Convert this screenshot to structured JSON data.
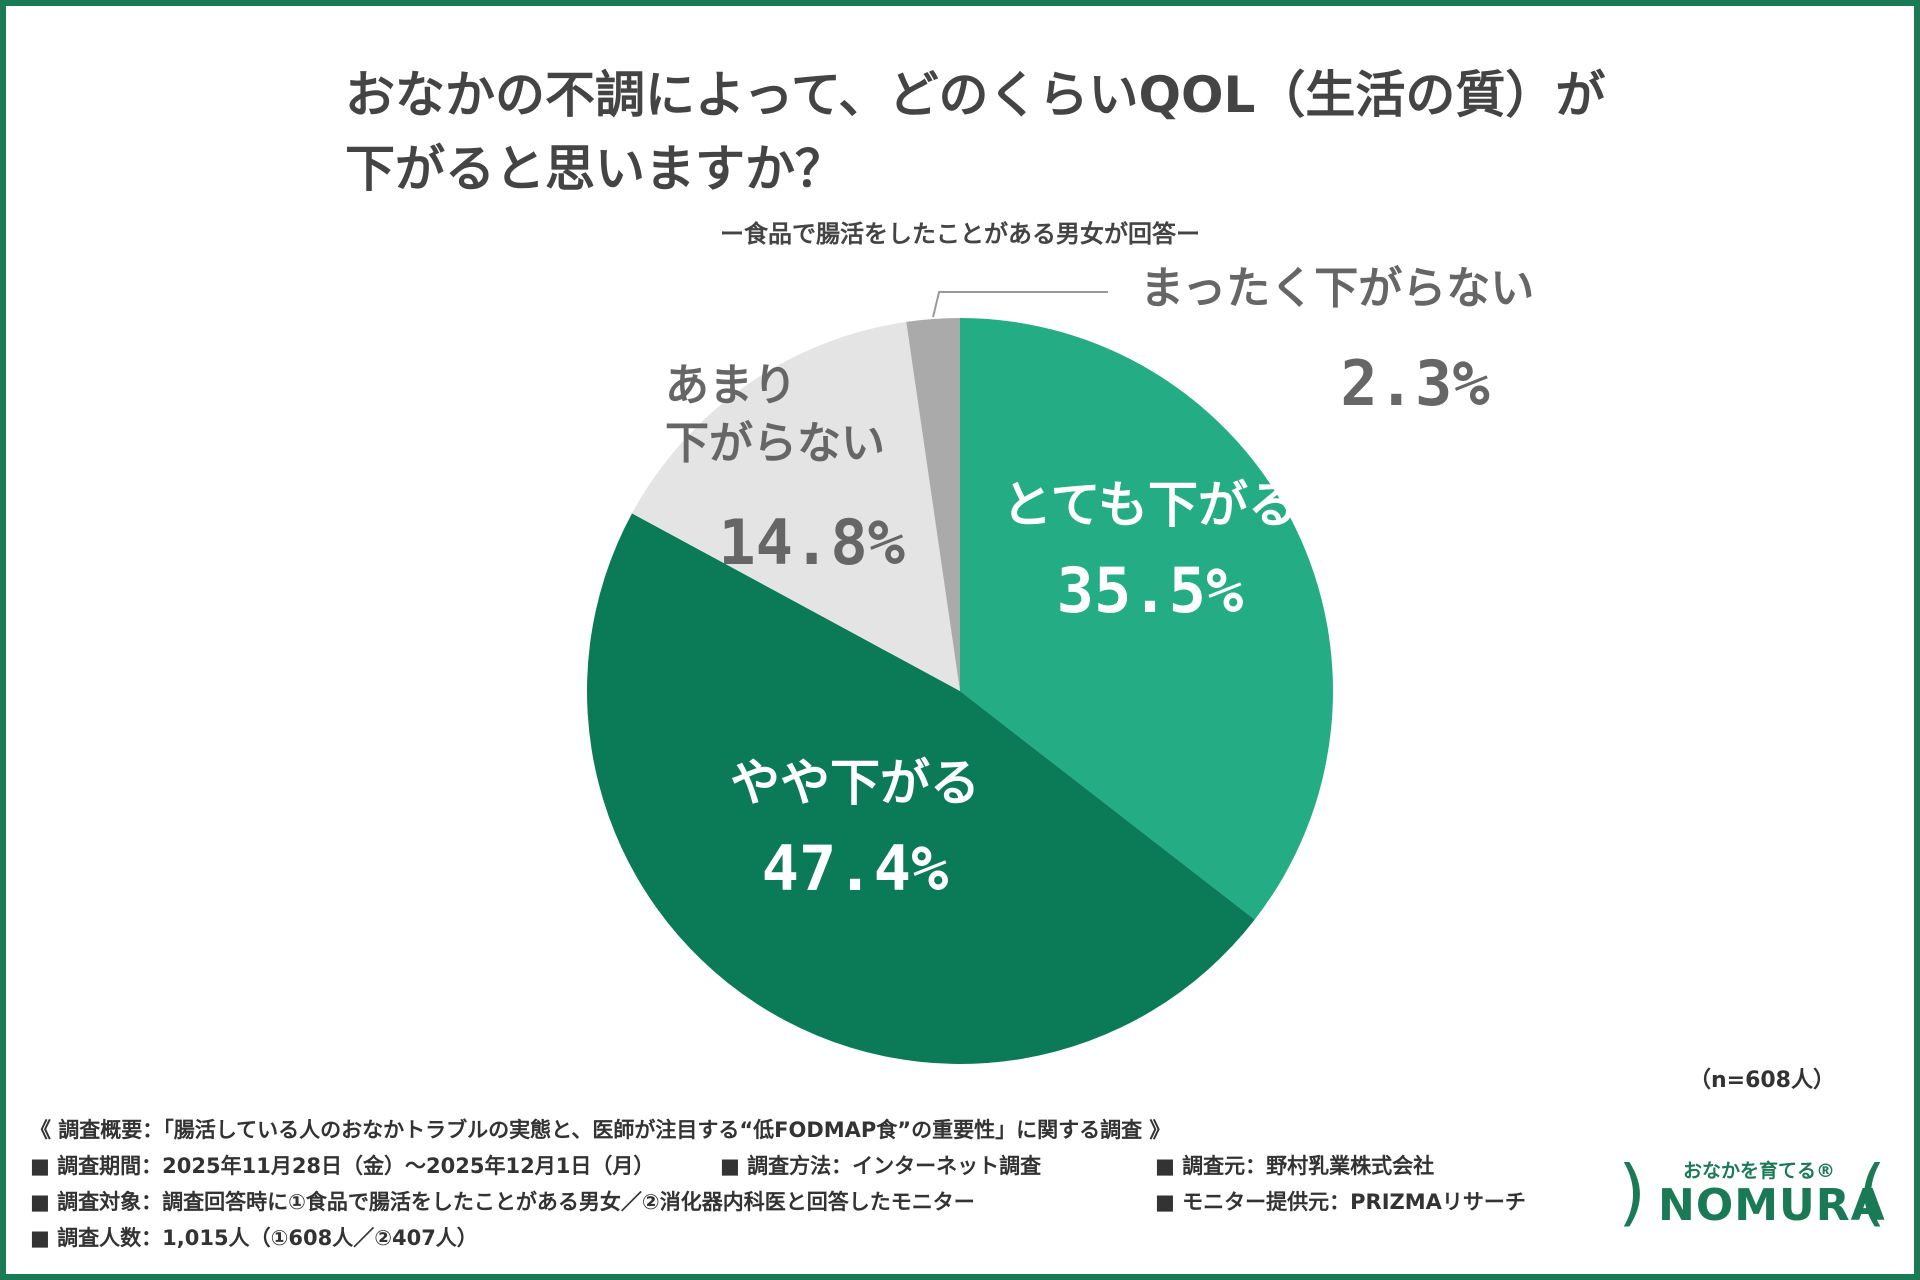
{
  "title_line1": "おなかの不調によって、どのくらいQOL（生活の質）が",
  "title_line2": "下がると思いますか？",
  "subtitle": "ー食品で腸活をしたことがある男女が回答ー",
  "chart_data": {
    "type": "pie",
    "title": "おなかの不調によって、どのくらいQOL（生活の質）が下がると思いますか？",
    "slices": [
      {
        "label": "とても下がる",
        "value": 35.5,
        "display": "35.5%",
        "color": "#24ad84",
        "label_color": "#ffffff"
      },
      {
        "label": "やや下がる",
        "value": 47.4,
        "display": "47.4%",
        "color": "#0b7b57",
        "label_color": "#ffffff"
      },
      {
        "label": "あまり\n下がらない",
        "value": 14.8,
        "display": "14.8%",
        "color": "#e4e4e4",
        "label_color": "#666666"
      },
      {
        "label": "まったく下がらない",
        "value": 2.3,
        "display": "2.3%",
        "color": "#aaaaaa",
        "label_color": "#666666"
      }
    ],
    "start_angle": "12 o'clock",
    "direction": "clockwise"
  },
  "sample_size": "（n=608人）",
  "notes": {
    "overview": "《 調査概要：「腸活している人のおなかトラブルの実態と、医師が注目する“低FODMAP食”の重要性」に関する調査 》",
    "period": "■ 調査期間：2025年11月28日（金）〜2025年12月1日（月）",
    "method": "■ 調査方法：インターネット調査",
    "source": "■ 調査元：野村乳業株式会社",
    "target": "■ 調査対象：調査回答時に①食品で腸活をしたことがある男女／②消化器内科医と回答したモニター",
    "provider": "■ モニター提供元：PRIZMAリサーチ",
    "count": "■ 調査人数：1,015人（①608人／②407人）"
  },
  "logo": {
    "tagline": "おなかを育てる®",
    "name": "NOMURA"
  },
  "colors": {
    "brand_green": "#1a7a55",
    "frame": "#1a7a55"
  }
}
